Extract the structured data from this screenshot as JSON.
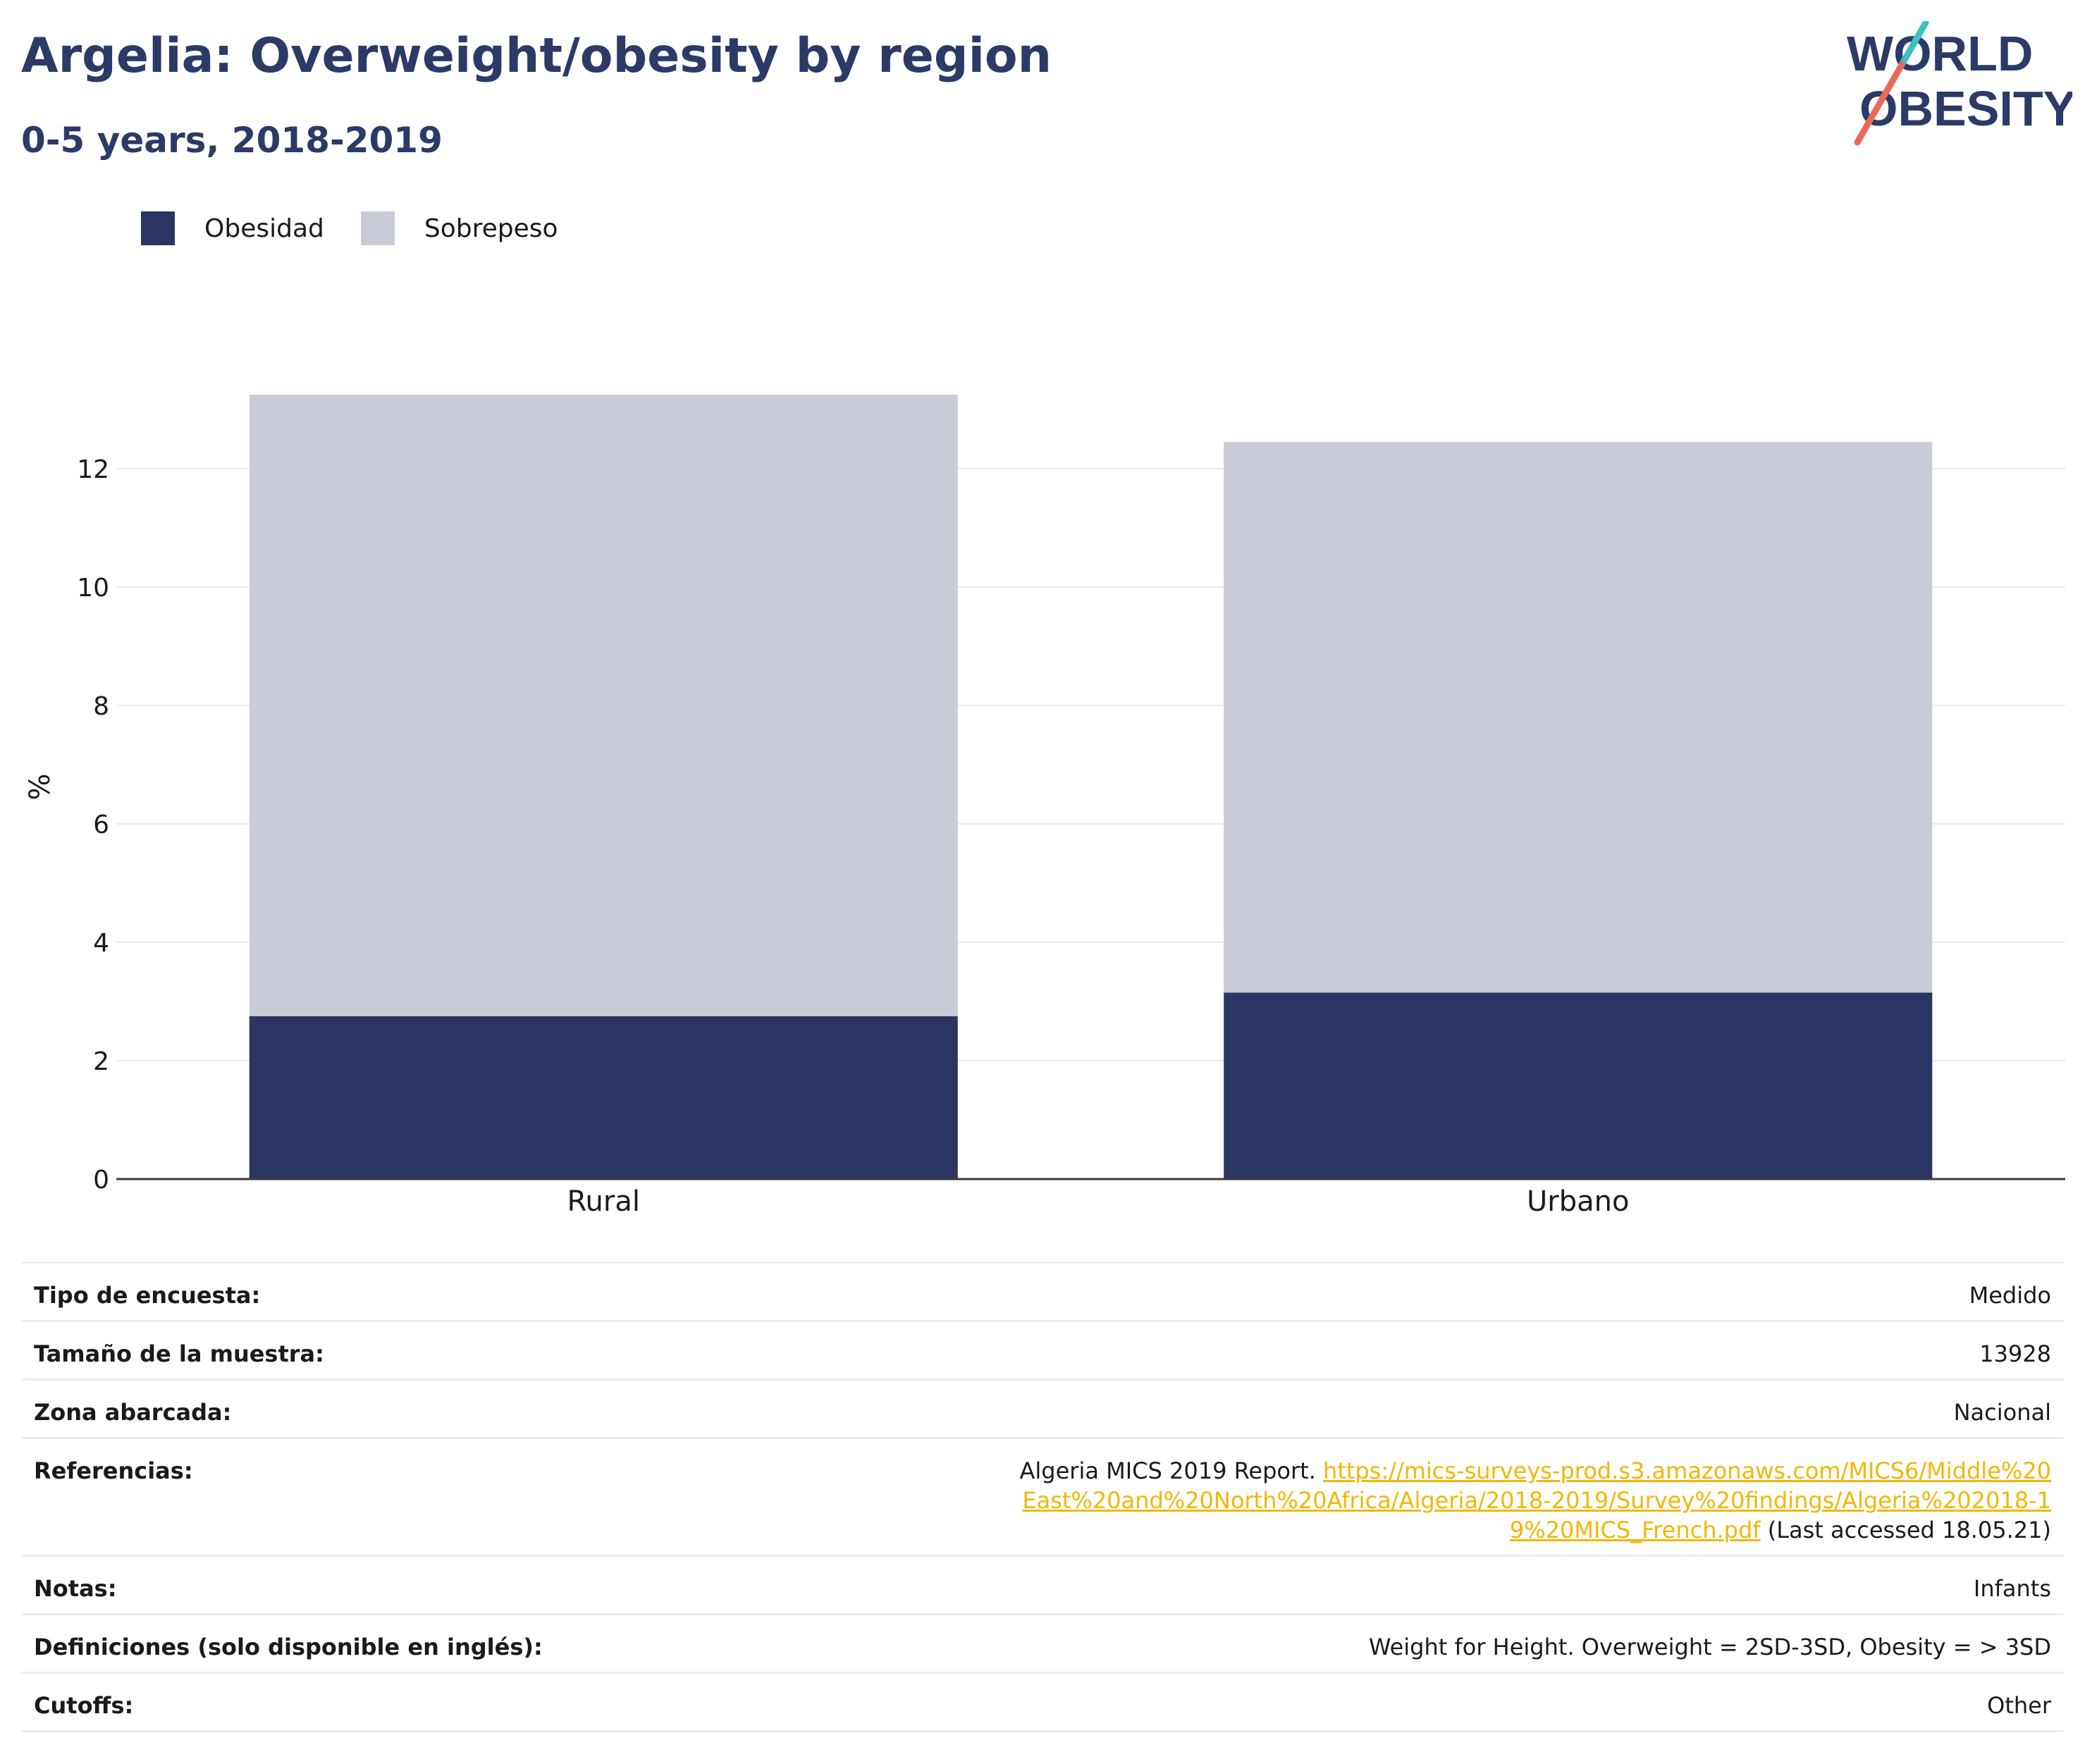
{
  "header": {
    "title": "Argelia: Overweight/obesity by region",
    "subtitle": "0-5 years, 2018-2019"
  },
  "logo": {
    "line1": "WORLD",
    "line2": "OBESITY",
    "stripe_teal": "#3fbfc1",
    "stripe_coral": "#ea6a5a",
    "text_color": "#2b3a66"
  },
  "legend": [
    {
      "label": "Obesidad",
      "color": "#2a3563"
    },
    {
      "label": "Sobrepeso",
      "color": "#c9cbd6"
    }
  ],
  "chart_data": {
    "type": "bar",
    "stacked": true,
    "categories": [
      "Rural",
      "Urbano"
    ],
    "series": [
      {
        "name": "Obesidad",
        "values": [
          2.75,
          3.15
        ],
        "color": "#2a3563"
      },
      {
        "name": "Sobrepeso",
        "values": [
          10.5,
          9.3
        ],
        "color": "#c9cbd6"
      }
    ],
    "ylabel": "%",
    "ylim": [
      0,
      13.25
    ],
    "yticks": [
      0,
      2,
      4,
      6,
      8,
      10,
      12
    ],
    "grid": true,
    "legend_position": "top-left"
  },
  "details": {
    "rows": [
      {
        "label": "Tipo de encuesta:",
        "value": "Medido"
      },
      {
        "label": "Tamaño de la muestra:",
        "value": "13928"
      },
      {
        "label": "Zona abarcada:",
        "value": "Nacional"
      }
    ],
    "references": {
      "label": "Referencias:",
      "text_before": "Algeria MICS 2019 Report.",
      "link": "https://mics-surveys-prod.s3.amazonaws.com/MICS6/Middle%20East%20and%20North%20Africa/Algeria/2018-2019/Survey%20findings/Algeria%202018-19%20MICS_French.pdf",
      "text_after": "(Last accessed 18.05.21)",
      "link_color": "#f2b705"
    },
    "rows_after": [
      {
        "label": "Notas:",
        "value": "Infants"
      },
      {
        "label": "Definiciones (solo disponible en inglés):",
        "value": "Weight for Height. Overweight = 2SD-3SD, Obesity = > 3SD"
      },
      {
        "label": "Cutoffs:",
        "value": "Other"
      }
    ]
  }
}
